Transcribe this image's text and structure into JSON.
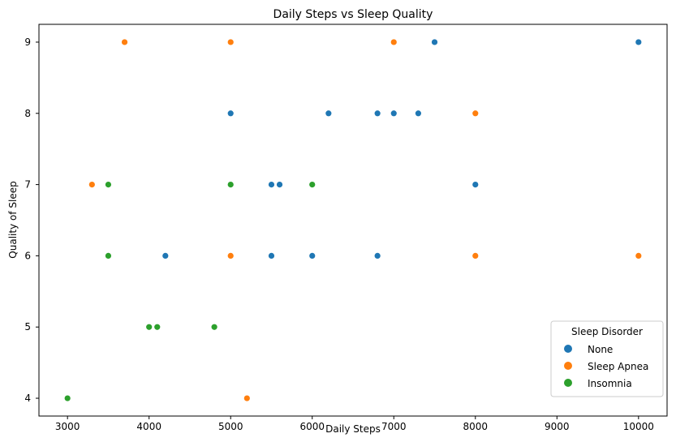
{
  "chart_data": {
    "type": "scatter",
    "title": "Daily Steps vs Sleep Quality",
    "xlabel": "Daily Steps",
    "ylabel": "Quality of Sleep",
    "xlim": [
      2650,
      10350
    ],
    "ylim": [
      3.75,
      9.25
    ],
    "xticks": [
      3000,
      4000,
      5000,
      6000,
      7000,
      8000,
      9000,
      10000
    ],
    "yticks": [
      4,
      5,
      6,
      7,
      8,
      9
    ],
    "grid": false,
    "legend": {
      "title": "Sleep Disorder",
      "placement": "lower-right"
    },
    "series": [
      {
        "name": "None",
        "color": "#1f77b4",
        "points": [
          [
            5000,
            8
          ],
          [
            5500,
            7
          ],
          [
            5600,
            7
          ],
          [
            5500,
            6
          ],
          [
            6000,
            6
          ],
          [
            4200,
            6
          ],
          [
            6200,
            8
          ],
          [
            6800,
            8
          ],
          [
            6800,
            6
          ],
          [
            7000,
            8
          ],
          [
            7300,
            8
          ],
          [
            7500,
            9
          ],
          [
            8000,
            7
          ],
          [
            10000,
            9
          ]
        ]
      },
      {
        "name": "Sleep Apnea",
        "color": "#ff7f0e",
        "points": [
          [
            3700,
            9
          ],
          [
            5000,
            9
          ],
          [
            7000,
            9
          ],
          [
            3300,
            7
          ],
          [
            5000,
            6
          ],
          [
            8000,
            8
          ],
          [
            8000,
            6
          ],
          [
            10000,
            6
          ],
          [
            5200,
            4
          ]
        ]
      },
      {
        "name": "Insomnia",
        "color": "#2ca02c",
        "points": [
          [
            3500,
            7
          ],
          [
            3500,
            6
          ],
          [
            5000,
            7
          ],
          [
            6000,
            7
          ],
          [
            4000,
            5
          ],
          [
            4100,
            5
          ],
          [
            4800,
            5
          ],
          [
            3000,
            4
          ]
        ]
      }
    ]
  }
}
